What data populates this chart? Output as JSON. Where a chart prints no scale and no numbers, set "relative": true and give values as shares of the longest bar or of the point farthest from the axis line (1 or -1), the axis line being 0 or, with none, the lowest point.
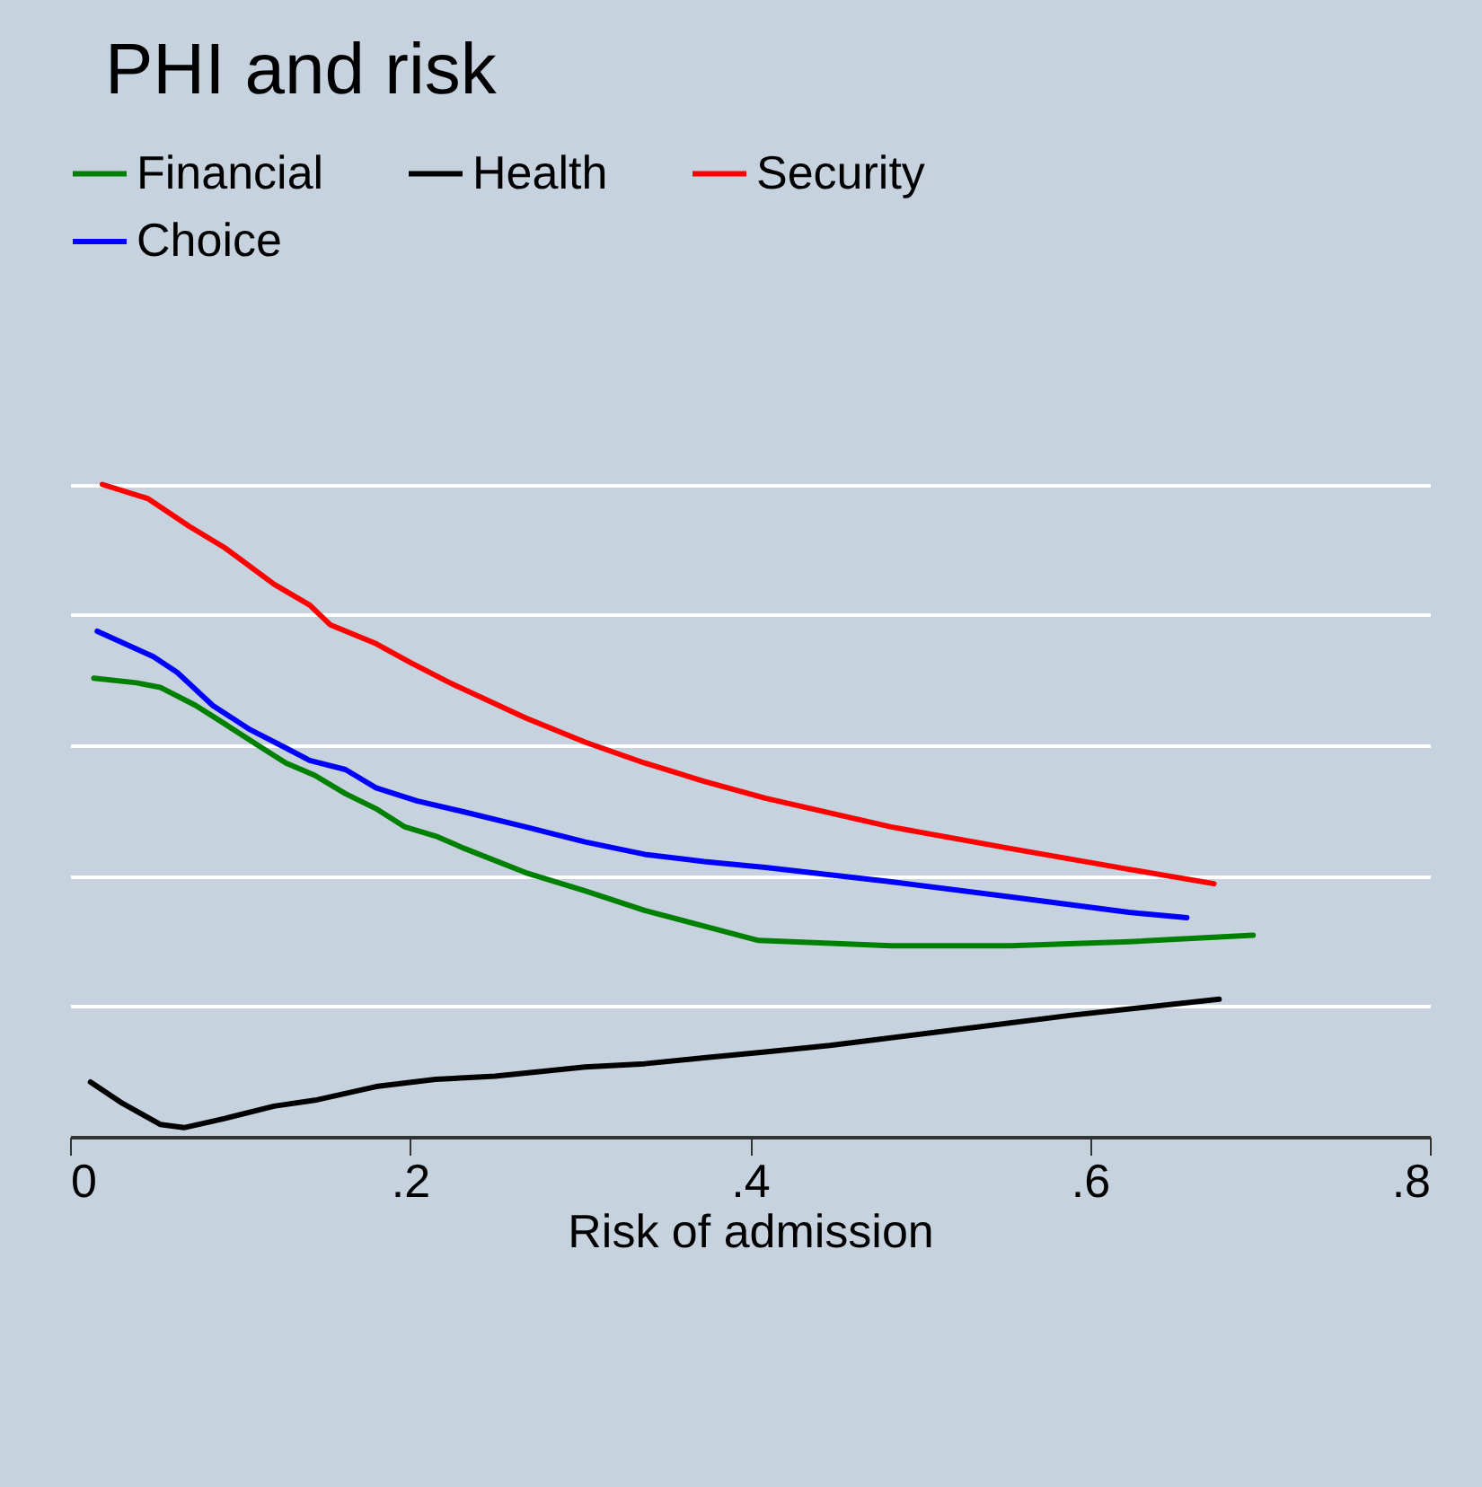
{
  "chart_data": {
    "type": "line",
    "title": "PHI and risk",
    "xlabel": "Risk of admission",
    "relative": true,
    "grid": "y",
    "legend": "top",
    "xlim": [
      0,
      0.8
    ],
    "xticks": [
      {
        "value": 0,
        "label": "0"
      },
      {
        "value": 0.2,
        "label": ".2"
      },
      {
        "value": 0.4,
        "label": ".4"
      },
      {
        "value": 0.6,
        "label": ".6"
      },
      {
        "value": 0.8,
        "label": ".8"
      }
    ],
    "series": [
      {
        "name": "Financial",
        "color": "#008000",
        "x": [
          0.014,
          0.039,
          0.053,
          0.074,
          0.091,
          0.113,
          0.127,
          0.144,
          0.162,
          0.18,
          0.197,
          0.215,
          0.232,
          0.268,
          0.303,
          0.338,
          0.373,
          0.405,
          0.483,
          0.553,
          0.623,
          0.696
        ],
        "values": [
          0.703,
          0.696,
          0.689,
          0.661,
          0.633,
          0.596,
          0.573,
          0.554,
          0.526,
          0.503,
          0.475,
          0.461,
          0.442,
          0.405,
          0.377,
          0.347,
          0.323,
          0.301,
          0.293,
          0.293,
          0.299,
          0.309
        ]
      },
      {
        "name": "Health",
        "color": "#000000",
        "x": [
          0.012,
          0.031,
          0.053,
          0.067,
          0.091,
          0.12,
          0.144,
          0.18,
          0.215,
          0.25,
          0.303,
          0.338,
          0.373,
          0.409,
          0.447,
          0.518,
          0.588,
          0.676
        ],
        "values": [
          0.084,
          0.051,
          0.019,
          0.014,
          0.028,
          0.047,
          0.056,
          0.077,
          0.088,
          0.093,
          0.107,
          0.112,
          0.121,
          0.13,
          0.14,
          0.163,
          0.186,
          0.211
        ]
      },
      {
        "name": "Security",
        "color": "#ff0000",
        "x": [
          0.019,
          0.046,
          0.07,
          0.091,
          0.12,
          0.141,
          0.153,
          0.18,
          0.201,
          0.225,
          0.268,
          0.303,
          0.338,
          0.373,
          0.409,
          0.483,
          0.553,
          0.623,
          0.673
        ],
        "values": [
          1.0,
          0.978,
          0.936,
          0.903,
          0.847,
          0.815,
          0.785,
          0.756,
          0.726,
          0.694,
          0.642,
          0.605,
          0.573,
          0.545,
          0.519,
          0.475,
          0.442,
          0.41,
          0.388
        ]
      },
      {
        "name": "Choice",
        "color": "#0000ff",
        "x": [
          0.016,
          0.049,
          0.063,
          0.084,
          0.106,
          0.127,
          0.141,
          0.162,
          0.18,
          0.204,
          0.232,
          0.268,
          0.303,
          0.338,
          0.373,
          0.409,
          0.483,
          0.553,
          0.623,
          0.657
        ],
        "values": [
          0.775,
          0.736,
          0.712,
          0.661,
          0.624,
          0.596,
          0.577,
          0.563,
          0.535,
          0.515,
          0.498,
          0.475,
          0.452,
          0.433,
          0.422,
          0.413,
          0.391,
          0.368,
          0.344,
          0.336
        ]
      }
    ]
  }
}
